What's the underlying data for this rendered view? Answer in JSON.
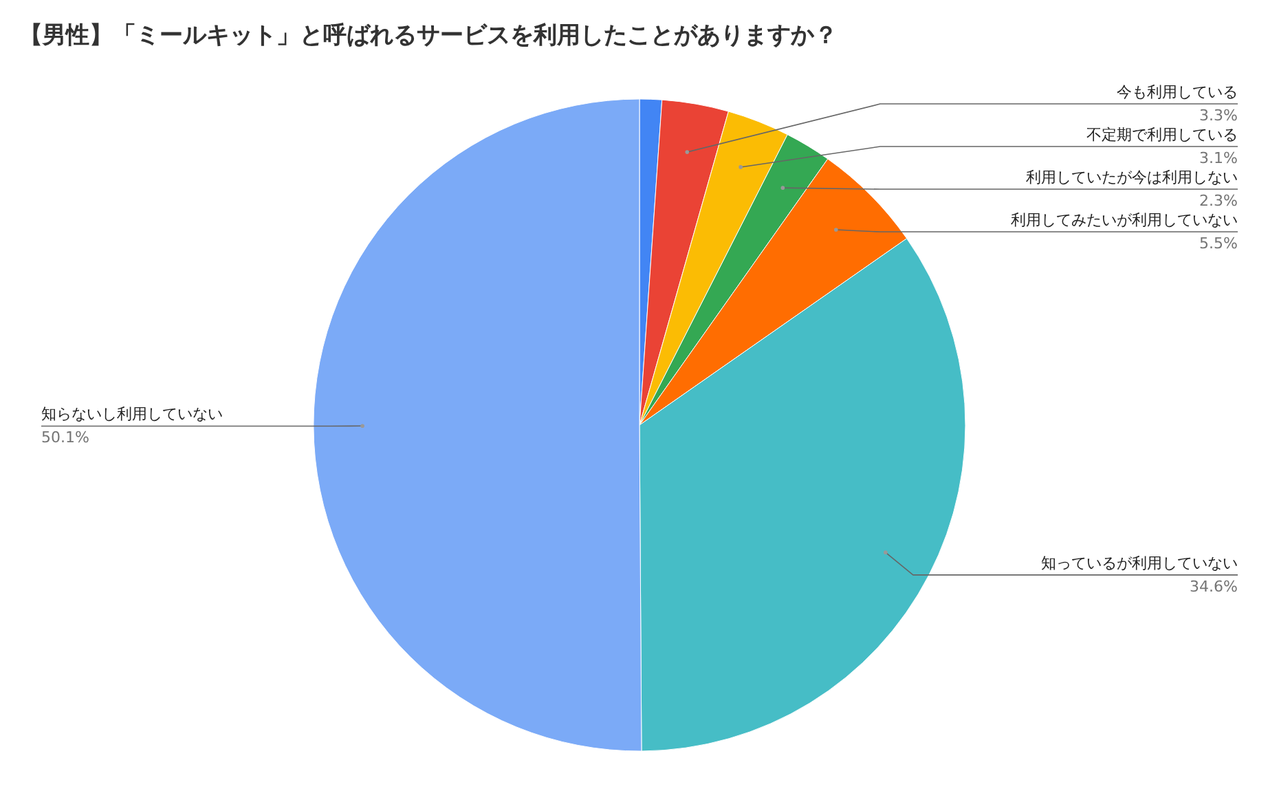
{
  "chart_data": {
    "type": "pie",
    "title": "【男性】「ミールキット」と呼ばれるサービスを利用したことがありますか？",
    "categories": [
      null,
      "今も利用している",
      "不定期で利用している",
      "利用していたが今は利用しない",
      "利用してみたいが利用していない",
      "知っているが利用していない",
      "知らないし利用していない"
    ],
    "values": [
      1.1,
      3.3,
      3.1,
      2.3,
      5.5,
      34.6,
      50.1
    ],
    "value_labels": [
      null,
      "3.3%",
      "3.1%",
      "2.3%",
      "5.5%",
      "34.6%",
      "50.1%"
    ],
    "colors": [
      "#4285f4",
      "#ea4335",
      "#fbbc04",
      "#34a853",
      "#ff6d01",
      "#46bdc6",
      "#7baaf7"
    ]
  }
}
